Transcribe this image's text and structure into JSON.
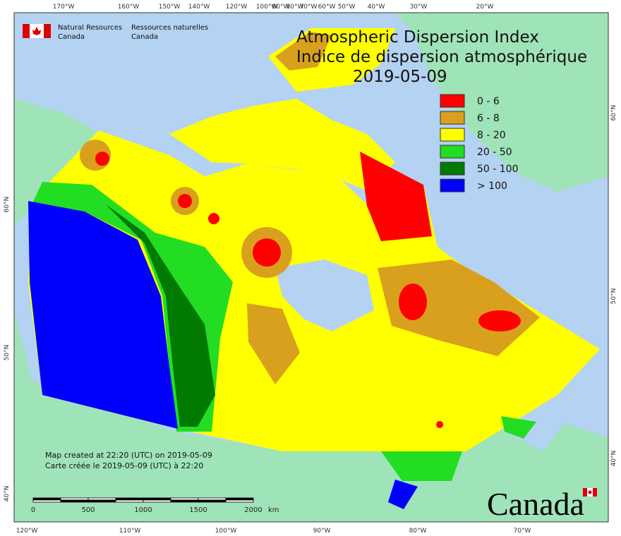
{
  "header": {
    "agency_en": [
      "Natural Resources",
      "Canada"
    ],
    "agency_fr": [
      "Ressources naturelles",
      "Canada"
    ]
  },
  "title": {
    "en": "Atmospheric Dispersion Index",
    "fr": "Indice de dispersion atmosphérique",
    "date": "2019-05-09"
  },
  "legend": [
    {
      "label": "0 - 6",
      "color": "#ff0000"
    },
    {
      "label": "6 - 8",
      "color": "#d9a01e"
    },
    {
      "label": "8 - 20",
      "color": "#ffff00"
    },
    {
      "label": "20 - 50",
      "color": "#22dd22"
    },
    {
      "label": "50 - 100",
      "color": "#007a00"
    },
    {
      "label": "> 100",
      "color": "#0000ff"
    }
  ],
  "graticule": {
    "top": [
      "170°W",
      "160°W",
      "150°W",
      "140°W",
      "120°W",
      "100°W",
      "90°W",
      "80°W",
      "70°W",
      "60°W",
      "50°W",
      "40°W",
      "30°W",
      "20°W"
    ],
    "bottom": [
      "120°W",
      "110°W",
      "100°W",
      "90°W",
      "80°W",
      "70°W"
    ],
    "left": [
      "60°N",
      "50°N",
      "40°N"
    ],
    "right": [
      "60°N",
      "50°N",
      "40°N"
    ]
  },
  "notes": [
    "Map created at 22:20 (UTC) on 2019-05-09",
    "Carte créée le 2019-05-09 (UTC) à 22:20"
  ],
  "scale_bar": {
    "labels": [
      "0",
      "500",
      "1000",
      "1500",
      "2000"
    ],
    "unit": "km"
  },
  "wordmark": "Canada"
}
